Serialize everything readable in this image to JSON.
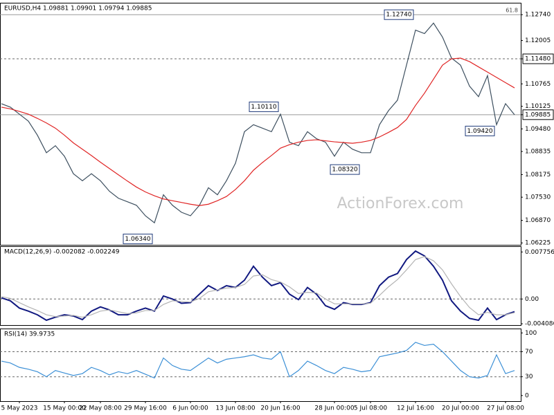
{
  "chart_data": [
    {
      "type": "line",
      "title": "EURUSD,H4 1.09881 1.09901 1.09794 1.09885",
      "watermark": "ActionForex.com",
      "ylim": [
        1.0617,
        1.1308
      ],
      "yticks": [
        {
          "value": 1.1274,
          "label": "1.12740"
        },
        1.12005,
        {
          "value": 1.1148,
          "label": "1.11480"
        },
        1.10765,
        1.10125,
        1.09885,
        {
          "value": 1.0948,
          "label": "1.09480"
        },
        1.08835,
        1.08175,
        {
          "value": 1.0753,
          "label": "1.07530"
        },
        {
          "value": 1.0687,
          "label": "1.06870"
        },
        1.06225
      ],
      "series": [
        {
          "color": "#3d4f5f",
          "values": [
            1.102,
            1.101,
            1.099,
            1.097,
            1.093,
            1.088,
            1.09,
            1.087,
            1.082,
            1.08,
            1.082,
            1.08,
            1.077,
            1.075,
            1.074,
            1.073,
            1.07,
            1.068,
            1.076,
            1.073,
            1.071,
            1.07,
            1.073,
            1.078,
            1.076,
            1.08,
            1.085,
            1.094,
            1.096,
            1.095,
            1.094,
            1.099,
            1.091,
            1.09,
            1.094,
            1.092,
            1.091,
            1.087,
            1.091,
            1.089,
            1.088,
            1.088,
            1.096,
            1.1,
            1.103,
            1.113,
            1.123,
            1.122,
            1.125,
            1.121,
            1.115,
            1.113,
            1.107,
            1.104,
            1.11,
            1.096,
            1.102,
            1.09885
          ]
        },
        {
          "color": "#e02424",
          "values": [
            1.101,
            1.1005,
            1.0998,
            1.099,
            1.0978,
            1.0965,
            1.095,
            1.093,
            1.0908,
            1.089,
            1.0872,
            1.0853,
            1.0835,
            1.0817,
            1.0799,
            1.0782,
            1.0768,
            1.0757,
            1.0748,
            1.0743,
            1.0738,
            1.0733,
            1.0729,
            1.0733,
            1.0743,
            1.0755,
            1.0775,
            1.08,
            1.083,
            1.0852,
            1.0872,
            1.0893,
            1.0903,
            1.091,
            1.0915,
            1.0917,
            1.0914,
            1.0911,
            1.0909,
            1.0907,
            1.091,
            1.0915,
            1.0925,
            1.0938,
            1.0952,
            1.0975,
            1.1015,
            1.105,
            1.109,
            1.113,
            1.1148,
            1.115,
            1.114,
            1.1125,
            1.111,
            1.1095,
            1.108,
            1.1065
          ]
        }
      ],
      "hlines": [
        {
          "value": 1.1274,
          "style": "solid",
          "label": "61.8"
        },
        {
          "value": 1.1148,
          "style": "dashed",
          "boxed": true
        },
        {
          "value": 1.09885,
          "style": "solid",
          "boxed": true
        }
      ],
      "annotations": [
        {
          "text": "1.12740",
          "value": 1.1274,
          "at": 46
        },
        {
          "text": "1.10110",
          "value": 1.1011,
          "at": 31
        },
        {
          "text": "1.06340",
          "value": 1.0634,
          "at": 17
        },
        {
          "text": "1.08320",
          "value": 1.0832,
          "at": 40
        },
        {
          "text": "1.09420",
          "value": 1.0942,
          "at": 55
        }
      ]
    },
    {
      "type": "line",
      "title": "MACD(12,26,9) -0.002082 -0.002249",
      "ylim": [
        -0.0043,
        0.0087
      ],
      "yticks": [
        0.007756,
        {
          "value": 0,
          "label": "0.00"
        },
        -0.004086
      ],
      "series": [
        {
          "color": "#101880",
          "values": [
            0.0002,
            -0.0003,
            -0.0015,
            -0.002,
            -0.0026,
            -0.0035,
            -0.003,
            -0.0026,
            -0.0028,
            -0.0034,
            -0.002,
            -0.0013,
            -0.0018,
            -0.0026,
            -0.0026,
            -0.002,
            -0.0015,
            -0.002,
            0.0005,
            0.0,
            -0.0007,
            -0.0006,
            0.0008,
            0.0022,
            0.0014,
            0.0022,
            0.0019,
            0.0031,
            0.0054,
            0.0036,
            0.0022,
            0.0027,
            0.0008,
            -0.0001,
            0.0019,
            0.0008,
            -0.0011,
            -0.0017,
            -0.0006,
            -0.0009,
            -0.0009,
            -0.0006,
            0.0022,
            0.0036,
            0.0042,
            0.0065,
            0.0079,
            0.0071,
            0.0054,
            0.0031,
            -0.0003,
            -0.002,
            -0.0032,
            -0.0035,
            -0.0015,
            -0.0034,
            -0.0026,
            -0.002082
          ]
        },
        {
          "color": "#b4b4b4",
          "values": [
            0.0004,
            0.0001,
            -0.0006,
            -0.0013,
            -0.0019,
            -0.0026,
            -0.0029,
            -0.0028,
            -0.0027,
            -0.003,
            -0.0026,
            -0.002,
            -0.0018,
            -0.0021,
            -0.0024,
            -0.0023,
            -0.0019,
            -0.0019,
            -0.0009,
            -0.0003,
            -0.0004,
            -0.0005,
            0.0001,
            0.0012,
            0.0015,
            0.0018,
            0.0019,
            0.0024,
            0.0038,
            0.004,
            0.0032,
            0.0028,
            0.002,
            0.0009,
            0.0011,
            0.001,
            0.0,
            -0.0008,
            -0.0008,
            -0.0008,
            -0.0008,
            -0.0007,
            0.0006,
            0.002,
            0.0032,
            0.0048,
            0.0065,
            0.007,
            0.0063,
            0.0048,
            0.0025,
            0.0004,
            -0.0014,
            -0.0026,
            -0.0022,
            -0.0026,
            -0.0026,
            -0.002249
          ]
        }
      ],
      "hlines": [
        {
          "value": 0,
          "style": "dashed"
        }
      ]
    },
    {
      "type": "line",
      "title": "RSI(14) 39.9735",
      "ylim": [
        -9,
        107
      ],
      "yticks": [
        100,
        70,
        30,
        0
      ],
      "series": [
        {
          "color": "#3b8fd6",
          "values": [
            55,
            52,
            45,
            42,
            38,
            30,
            40,
            36,
            32,
            35,
            45,
            40,
            33,
            38,
            35,
            40,
            34,
            28,
            60,
            48,
            42,
            40,
            50,
            60,
            52,
            58,
            60,
            62,
            65,
            60,
            58,
            70,
            30,
            40,
            55,
            48,
            40,
            35,
            45,
            42,
            38,
            40,
            62,
            65,
            68,
            72,
            85,
            80,
            82,
            70,
            55,
            40,
            30,
            28,
            32,
            65,
            35,
            39.9735
          ]
        }
      ],
      "hlines": [
        {
          "value": 70,
          "style": "dashed"
        },
        {
          "value": 30,
          "style": "dashed"
        }
      ],
      "categories": [
        null,
        null,
        "5 May 2023",
        null,
        null,
        null,
        null,
        "15 May 00:00",
        null,
        null,
        null,
        "22 May 08:00",
        null,
        null,
        null,
        null,
        "29 May 16:00",
        null,
        null,
        null,
        null,
        "6 Jun 00:00",
        null,
        null,
        null,
        null,
        "13 Jun 08:00",
        null,
        null,
        null,
        null,
        "20 Jun 16:00",
        null,
        null,
        null,
        null,
        null,
        "28 Jun 00:00",
        null,
        null,
        null,
        "5 Jul 08:00",
        null,
        null,
        null,
        null,
        "12 Jul 16:00",
        null,
        null,
        null,
        null,
        "20 Jul 00:00",
        null,
        null,
        null,
        null,
        "27 Jul 08:00",
        null
      ]
    }
  ]
}
